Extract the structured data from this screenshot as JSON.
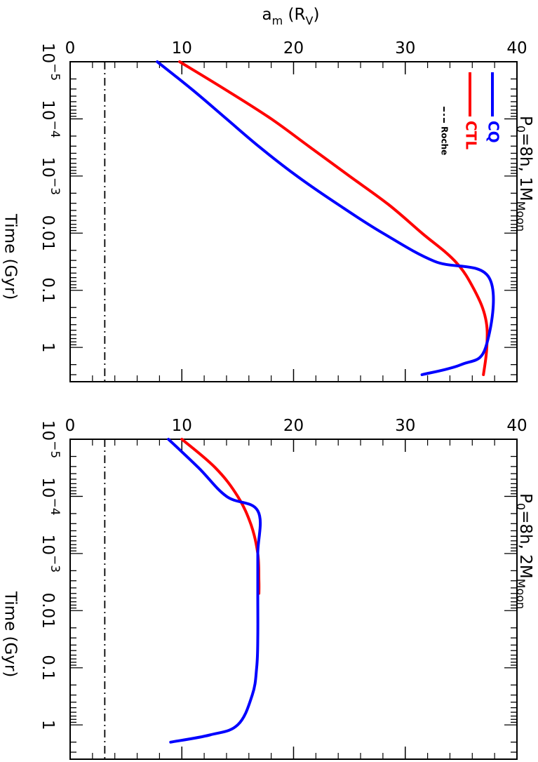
{
  "chart_data": [
    {
      "type": "line",
      "panel_label": "P0=8h, 1MMoon",
      "panel_label_parts": {
        "lead": "P",
        "lead_sub": "0",
        "mid": "=8h, 1M",
        "tail_sub": "Moon"
      },
      "x_axis_label": "am (RV)",
      "x_axis_label_parts": {
        "a": "a",
        "a_sub": "m",
        "open": " (R",
        "r_sub": "V",
        "close": ")"
      },
      "y_axis_label": "Time (Gyr)",
      "xlim": [
        0,
        40
      ],
      "x_ticks": [
        "0",
        "10",
        "20",
        "30",
        "40"
      ],
      "ylim_log10": [
        -5,
        0.6
      ],
      "y_scale": "log",
      "y_ticks": [
        {
          "base": "10",
          "exp": "−5",
          "text": ""
        },
        {
          "base": "10",
          "exp": "−4",
          "text": ""
        },
        {
          "base": "10",
          "exp": "−3",
          "text": ""
        },
        {
          "base": "",
          "exp": "",
          "text": "0.01"
        },
        {
          "base": "",
          "exp": "",
          "text": "0.1"
        },
        {
          "base": "",
          "exp": "",
          "text": "1"
        }
      ],
      "roche_limit": 3.1,
      "series": [
        {
          "name": "CTL",
          "color": "#ff0000",
          "x": [
            9.8,
            14.0,
            18.0,
            21.5,
            25.0,
            28.5,
            31.5,
            34.5,
            36.2,
            37.2,
            37.3,
            37.0
          ],
          "y": [
            1e-05,
            3.16e-05,
            0.0001,
            0.000316,
            0.001,
            0.00316,
            0.01,
            0.0316,
            0.1,
            0.316,
            1.0,
            3.0
          ]
        },
        {
          "name": "CQ",
          "color": "#0000ff",
          "x": [
            7.8,
            11.0,
            14.0,
            17.0,
            20.3,
            24.0,
            28.0,
            32.6,
            37.5,
            37.2,
            35.0,
            31.5
          ],
          "y": [
            1e-05,
            3.16e-05,
            0.0001,
            0.000316,
            0.001,
            0.00316,
            0.01,
            0.031,
            0.06,
            1.0,
            2.0,
            3.0
          ]
        }
      ],
      "legend": {
        "placement": "top-right",
        "entries": [
          "CQ",
          "CTL",
          "Roche"
        ]
      }
    },
    {
      "type": "line",
      "panel_label": "P0=8h, 2MMoon",
      "panel_label_parts": {
        "lead": "P",
        "lead_sub": "0",
        "mid": "=8h, 2M",
        "tail_sub": "Moon"
      },
      "x_axis_label": "",
      "y_axis_label": "Time (Gyr)",
      "xlim": [
        0,
        40
      ],
      "x_ticks": [
        "0",
        "10",
        "20",
        "30",
        "40"
      ],
      "ylim_log10": [
        -5,
        0.6
      ],
      "y_scale": "log",
      "y_ticks": [
        {
          "base": "10",
          "exp": "−5",
          "text": ""
        },
        {
          "base": "10",
          "exp": "−4",
          "text": ""
        },
        {
          "base": "10",
          "exp": "−3",
          "text": ""
        },
        {
          "base": "",
          "exp": "",
          "text": "0.01"
        },
        {
          "base": "",
          "exp": "",
          "text": "0.1"
        },
        {
          "base": "",
          "exp": "",
          "text": "1"
        }
      ],
      "roche_limit": 3.1,
      "series": [
        {
          "name": "CTL",
          "color": "#ff0000",
          "x": [
            10.0,
            13.0,
            15.0,
            16.2,
            16.8,
            16.9,
            16.9
          ],
          "y": [
            1e-05,
            3.16e-05,
            0.0001,
            0.000316,
            0.001,
            0.003,
            0.005
          ]
        },
        {
          "name": "CQ",
          "color": "#0000ff",
          "x": [
            8.8,
            11.5,
            14.0,
            16.8,
            16.8,
            16.8,
            16.8,
            16.7,
            16.3,
            15.0,
            12.5,
            9.0
          ],
          "y": [
            1e-05,
            3.16e-05,
            0.0001,
            0.000179,
            0.001,
            0.005,
            0.03,
            0.1,
            0.3,
            1.0,
            1.5,
            2.0
          ]
        }
      ]
    }
  ]
}
